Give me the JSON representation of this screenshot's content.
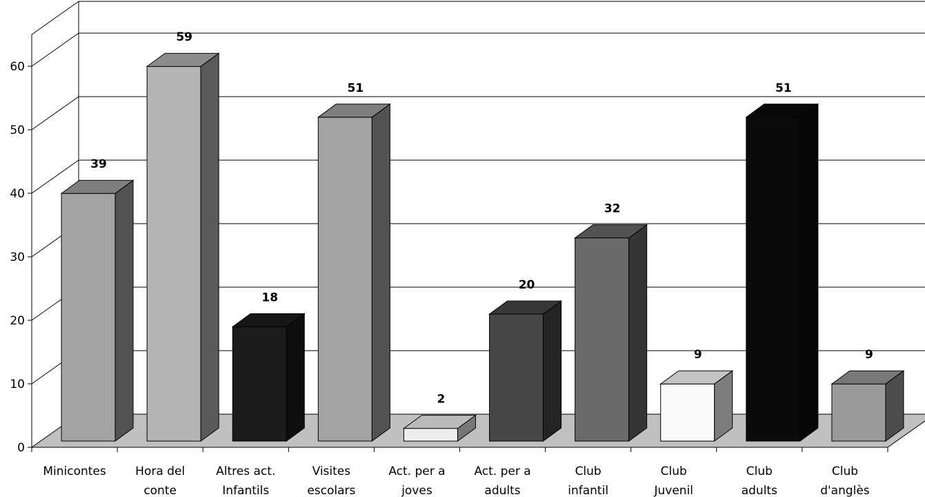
{
  "chart_data": {
    "type": "bar",
    "categories": [
      [
        "Minicontes"
      ],
      [
        "Hora del",
        "conte"
      ],
      [
        "Altres act.",
        "Infantils"
      ],
      [
        "Visites",
        "escolars"
      ],
      [
        "Act. per a",
        "joves"
      ],
      [
        "Act. per a",
        "adults"
      ],
      [
        "Club",
        "infantil"
      ],
      [
        "Club",
        "Juvenil"
      ],
      [
        "Club",
        "adults"
      ],
      [
        "Club",
        "d'anglès"
      ]
    ],
    "values": [
      39,
      59,
      18,
      51,
      2,
      20,
      32,
      9,
      51,
      9
    ],
    "data_labels": [
      "39",
      "59",
      "18",
      "51",
      "2",
      "20",
      "32",
      "9",
      "51",
      "9"
    ],
    "bar_colors": [
      "#a3a3a3",
      "#b4b4b4",
      "#1c1c1c",
      "#a3a3a3",
      "#eeeeee",
      "#474747",
      "#6a6a6a",
      "#fafafa",
      "#0b0b0b",
      "#9a9a9a"
    ],
    "y_ticks": [
      "0",
      "10",
      "20",
      "30",
      "40",
      "50",
      "60"
    ],
    "ylim": [
      0,
      65
    ],
    "grid": true,
    "floor_color": "#c0c0c0",
    "title": "",
    "xlabel": "",
    "ylabel": ""
  }
}
